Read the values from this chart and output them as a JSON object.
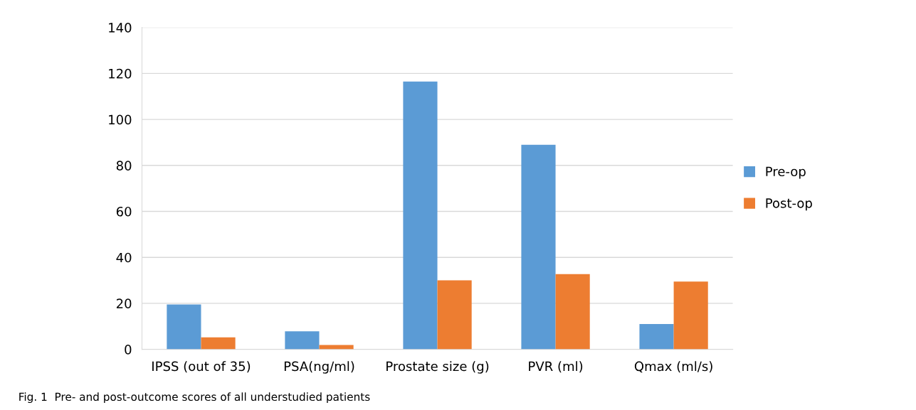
{
  "chart_data": {
    "type": "bar",
    "categories": [
      "IPSS (out of 35)",
      "PSA(ng/ml)",
      "Prostate size (g)",
      "PVR (ml)",
      "Qmax (ml/s)"
    ],
    "series": [
      {
        "name": "Pre-op",
        "color": "#5b9bd5",
        "values": [
          19.5,
          7.8,
          116.5,
          89,
          11
        ]
      },
      {
        "name": "Post-op",
        "color": "#ed7d31",
        "values": [
          5.2,
          1.9,
          30,
          32.7,
          29.5
        ]
      }
    ],
    "ylim": [
      0,
      140
    ],
    "yticks": [
      0,
      20,
      40,
      60,
      80,
      100,
      120,
      140
    ],
    "grid": "y",
    "legend": "right",
    "annotations": [
      "Fig. 1  Pre- and post-outcome scores of all understudied patients"
    ]
  }
}
